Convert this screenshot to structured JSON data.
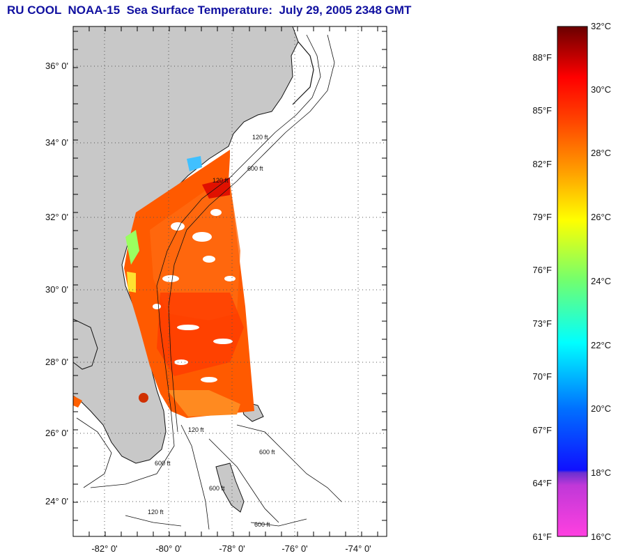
{
  "title": "RU COOL  NOAA-15  Sea Surface Temperature:  July 29, 2005 2348 GMT",
  "map": {
    "lat_labels": [
      "36° 0'",
      "34° 0'",
      "32° 0'",
      "30° 0'",
      "28° 0'",
      "26° 0'",
      "24° 0'"
    ],
    "lon_labels": [
      "-82° 0'",
      "-80° 0'",
      "-78° 0'",
      "-76° 0'",
      "-74° 0'"
    ],
    "contour_labels": [
      "120 ft",
      "600 ft",
      "120 ft",
      "600 ft",
      "120 ft",
      "600 ft",
      "600 ft",
      "120 ft",
      "600 ft"
    ],
    "colors": {
      "land": "#c8c8c8",
      "grid": "#555555",
      "frame": "#000000"
    }
  },
  "colorbar": {
    "celsius_labels": [
      "32°C",
      "30°C",
      "28°C",
      "26°C",
      "24°C",
      "22°C",
      "20°C",
      "18°C",
      "16°C"
    ],
    "fahrenheit_labels": [
      "88°F",
      "85°F",
      "82°F",
      "79°F",
      "76°F",
      "73°F",
      "70°F",
      "67°F",
      "64°F",
      "61°F"
    ],
    "stops": [
      "#ff50e0",
      "#b030d0",
      "#2020ff",
      "#0090ff",
      "#00ffff",
      "#60ff90",
      "#d0ff20",
      "#ffff00",
      "#ffb000",
      "#ff7000",
      "#ff2000",
      "#ff0000",
      "#c00000",
      "#700000"
    ]
  }
}
